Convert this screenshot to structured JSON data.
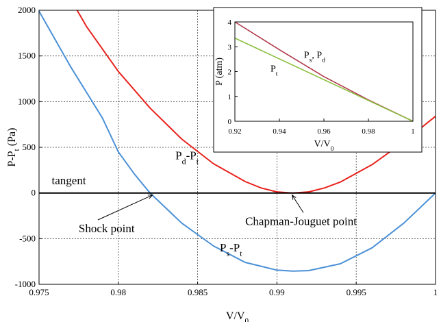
{
  "chart_data": [
    {
      "type": "line",
      "title": "",
      "xlabel": "V/V0",
      "xlabel_main": "V/V",
      "xlabel_sub": "0",
      "ylabel": "P-Pt (Pa)",
      "ylabel_main": "P-P",
      "ylabel_sub": "t",
      "ylabel_suffix": " (Pa)",
      "xlim": [
        0.975,
        1.0
      ],
      "ylim": [
        -1000,
        2000
      ],
      "x_ticks": [
        0.975,
        0.98,
        0.985,
        0.99,
        0.995,
        1.0
      ],
      "x_tick_labels": [
        "0.975",
        "0.98",
        "0.985",
        "0.99",
        "0.995",
        "1"
      ],
      "y_ticks": [
        -1000,
        -500,
        0,
        500,
        1000,
        1500,
        2000
      ],
      "y_tick_labels": [
        "-1000",
        "-500",
        "0",
        "500",
        "1000",
        "1500",
        "2000"
      ],
      "grid": true,
      "series": [
        {
          "name": "Pd-Pt",
          "color": "#e8221c",
          "x": [
            0.9774,
            0.978,
            0.98,
            0.982,
            0.984,
            0.986,
            0.988,
            0.989,
            0.99,
            0.991,
            0.992,
            0.993,
            0.994,
            0.996,
            0.998,
            1.0
          ],
          "y": [
            2000,
            1820,
            1330,
            930,
            590,
            320,
            125,
            55,
            12,
            0,
            12,
            55,
            120,
            310,
            560,
            840
          ]
        },
        {
          "name": "Ps-Pt",
          "color": "#4a90d6",
          "x": [
            0.975,
            0.977,
            0.979,
            0.98,
            0.981,
            0.982,
            0.984,
            0.986,
            0.988,
            0.99,
            0.991,
            0.992,
            0.994,
            0.996,
            0.998,
            1.0
          ],
          "y": [
            1990,
            1380,
            820,
            450,
            210,
            0,
            -330,
            -580,
            -760,
            -845,
            -855,
            -850,
            -775,
            -600,
            -330,
            0
          ]
        },
        {
          "name": "tangent",
          "color": "#000000",
          "x": [
            0.975,
            1.0
          ],
          "y": [
            0,
            0
          ]
        }
      ],
      "annotations": [
        {
          "text": "tangent",
          "x": 0.9758,
          "y": 95
        },
        {
          "text": "Shock point",
          "x": 0.9775,
          "y": -430,
          "arrow_to": [
            0.9822,
            0
          ]
        },
        {
          "text": "Chapman-Jouguet point",
          "x": 0.988,
          "y": -350,
          "arrow_to": [
            0.991,
            0
          ]
        }
      ],
      "series_labels": [
        {
          "main": "P",
          "sub1": "d",
          "mid": "-P",
          "sub2": "t",
          "x": 0.9836,
          "y": 370
        },
        {
          "main": "P",
          "sub1": "s",
          "mid": "-P",
          "sub2": "t",
          "x": 0.9864,
          "y": -640
        }
      ]
    },
    {
      "type": "line",
      "title": "",
      "xlabel": "V/V0",
      "xlabel_main": "V/V",
      "xlabel_sub": "0",
      "ylabel": "P (atm)",
      "xlim": [
        0.92,
        1.0
      ],
      "ylim": [
        0,
        4
      ],
      "x_ticks": [
        0.92,
        0.94,
        0.96,
        0.98,
        1.0
      ],
      "x_tick_labels": [
        "0.92",
        "0.94",
        "0.96",
        "0.98",
        "1"
      ],
      "y_ticks": [
        0,
        1,
        2,
        3,
        4
      ],
      "y_tick_labels": [
        "0",
        "1",
        "2",
        "3",
        "4"
      ],
      "grid": false,
      "series": [
        {
          "name": "Ps, Pd",
          "color": "#b0384a",
          "x": [
            0.92,
            0.94,
            0.96,
            0.98,
            1.0
          ],
          "y": [
            4.0,
            2.88,
            1.8,
            0.86,
            0.0
          ]
        },
        {
          "name": "Pt",
          "color": "#8cbf3f",
          "x": [
            0.92,
            1.0
          ],
          "y": [
            3.35,
            0.0
          ]
        }
      ],
      "series_labels": [
        {
          "main": "P",
          "sub1": "s",
          "mid": ", P",
          "sub2": "d",
          "x": 0.951,
          "y": 2.55
        },
        {
          "main": "P",
          "sub1": "t",
          "mid": "",
          "sub2": "",
          "x": 0.936,
          "y": 2.0
        }
      ]
    }
  ]
}
